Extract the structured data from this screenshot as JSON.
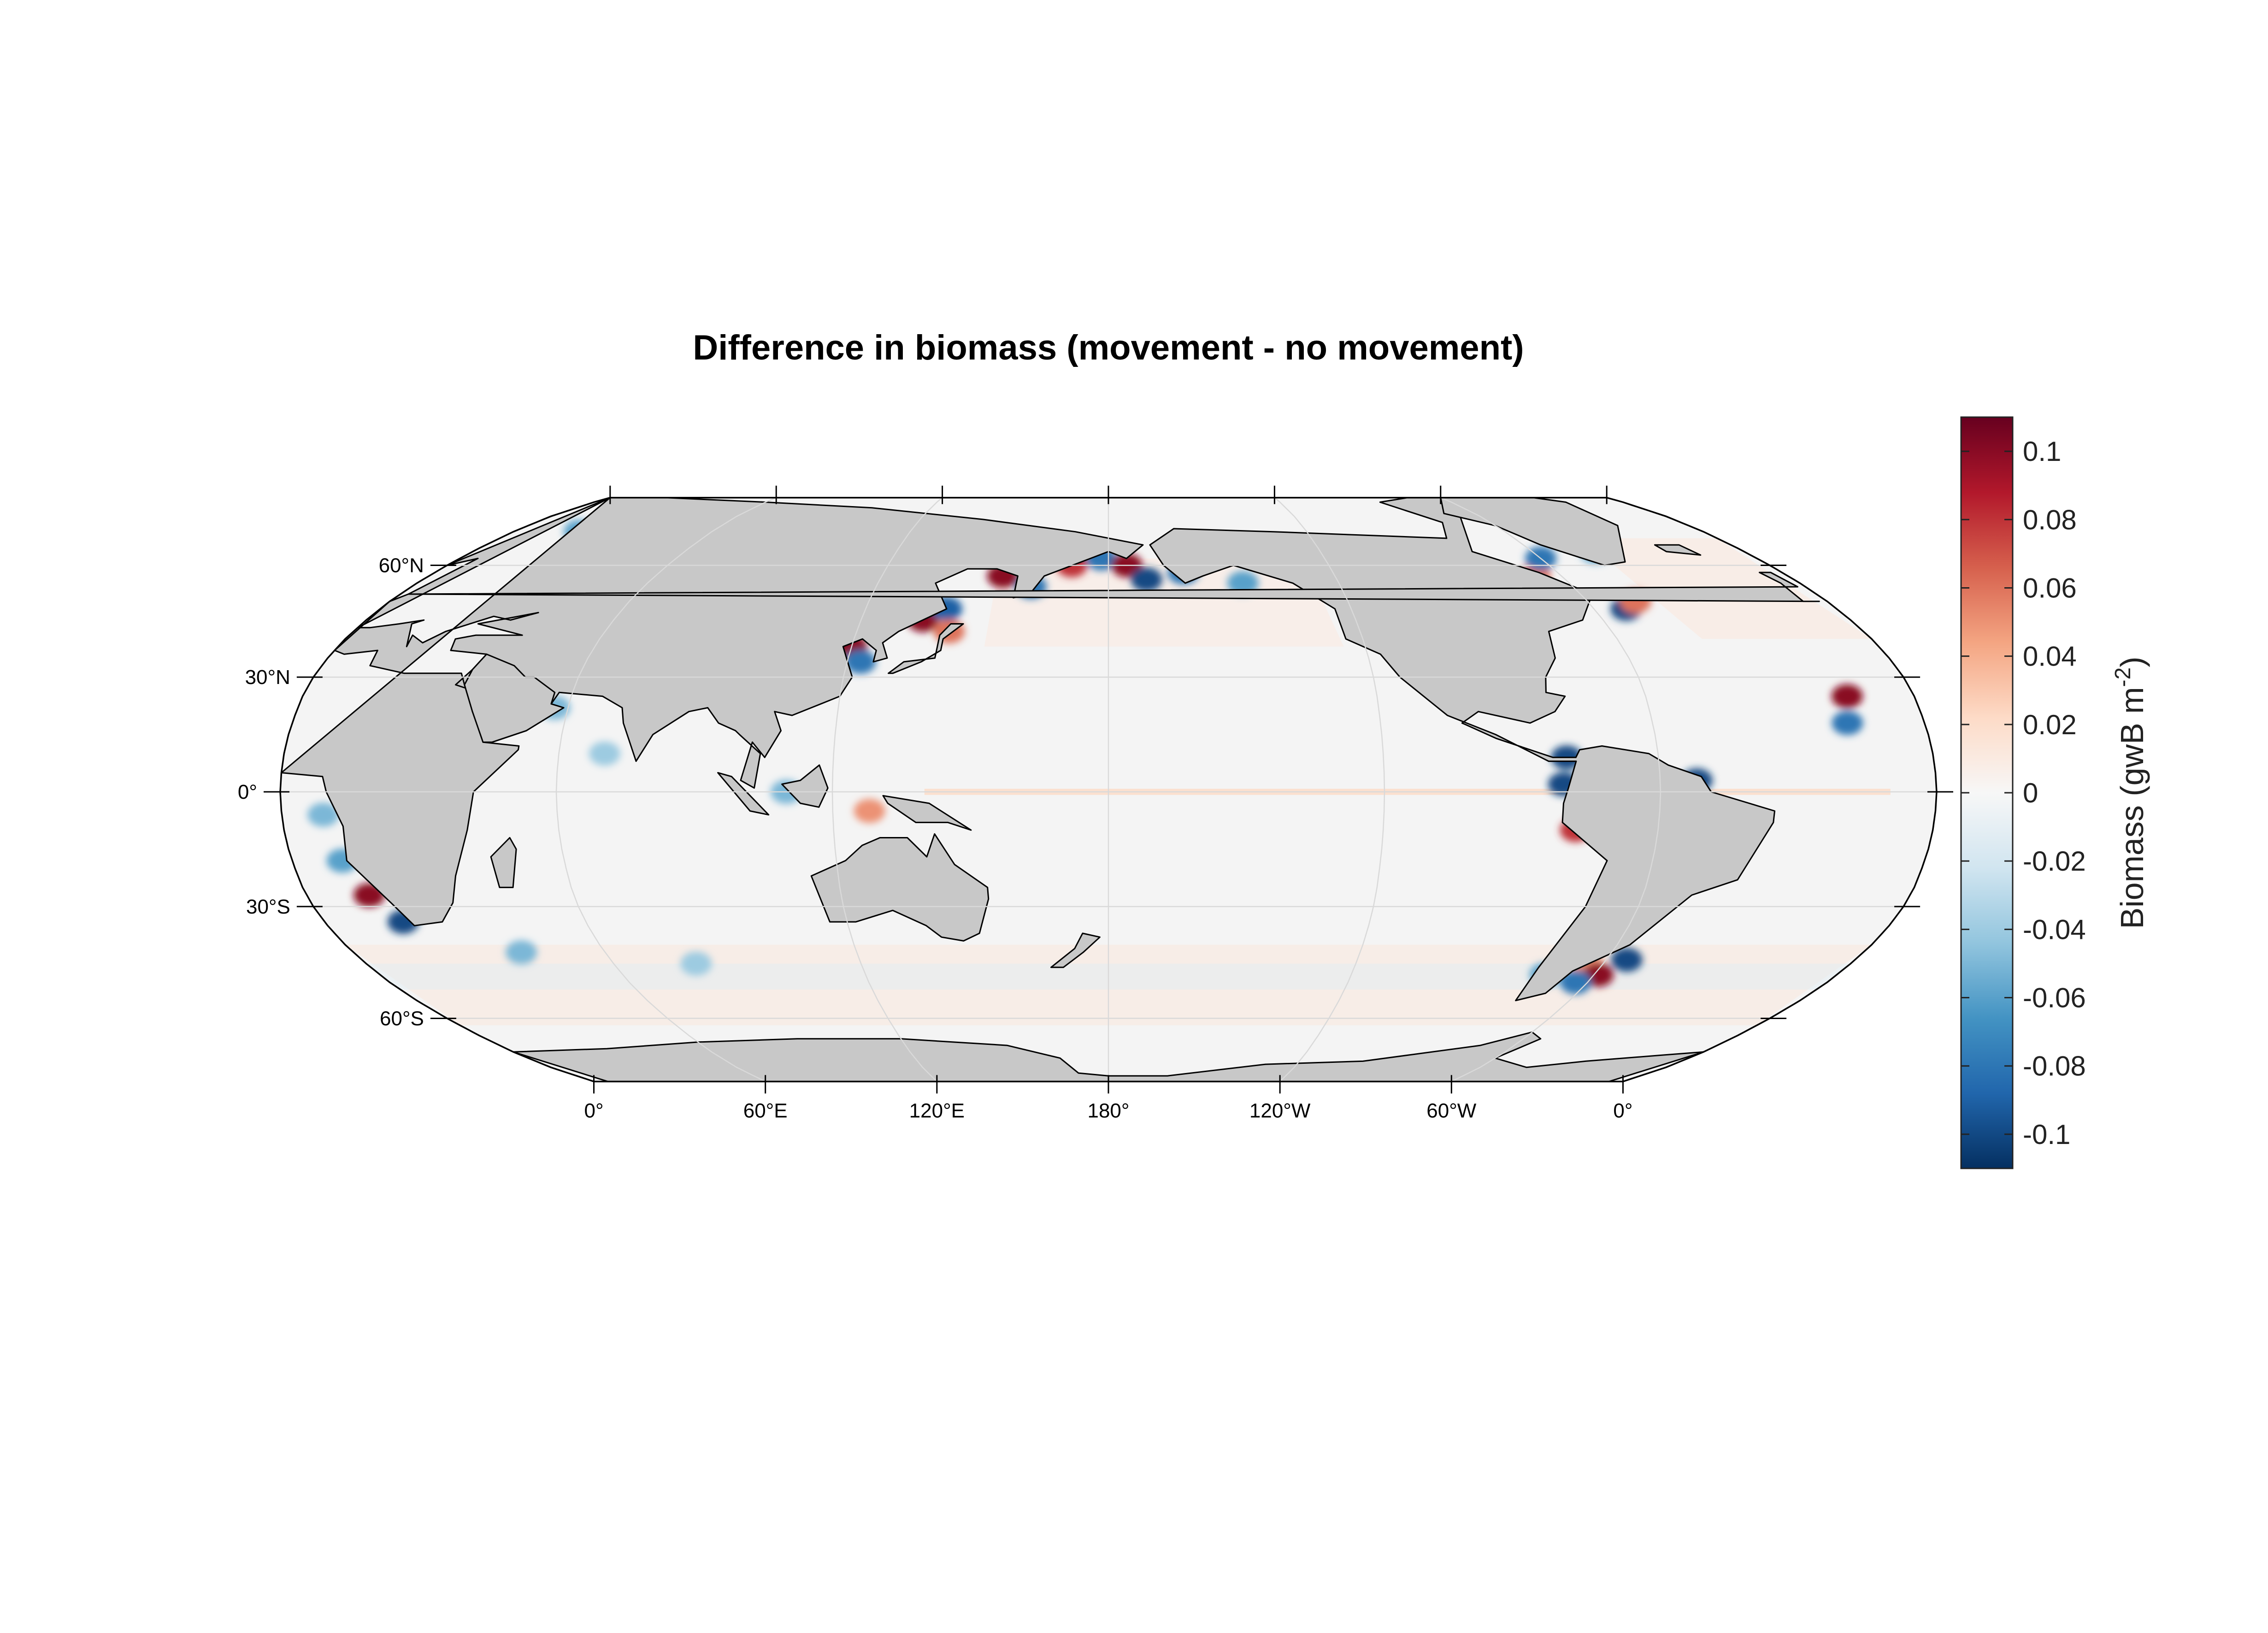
{
  "title": "Difference in biomass (movement - no movement)",
  "map": {
    "projection": "robinson",
    "central_meridian": 180,
    "land_color": "#c8c8c8",
    "ocean_color": "#f4f4f4",
    "grid_color": "#d9d9d9",
    "lat_ticks": [
      {
        "value": 60,
        "label": "60°N"
      },
      {
        "value": 30,
        "label": "30°N"
      },
      {
        "value": 0,
        "label": "0°"
      },
      {
        "value": -30,
        "label": "30°S"
      },
      {
        "value": -60,
        "label": "60°S"
      }
    ],
    "lon_ticks": [
      {
        "value": 0,
        "label": "0°"
      },
      {
        "value": 60,
        "label": "60°E"
      },
      {
        "value": 120,
        "label": "120°E"
      },
      {
        "value": 180,
        "label": "180°"
      },
      {
        "value": 240,
        "label": "120°W"
      },
      {
        "value": 300,
        "label": "60°W"
      },
      {
        "value": 360,
        "label": "0°"
      }
    ],
    "hotspots": [
      {
        "lon": 14,
        "lat": -27,
        "value": 0.1
      },
      {
        "lon": 18,
        "lat": -34,
        "value": -0.1
      },
      {
        "lon": 11,
        "lat": -18,
        "value": -0.06
      },
      {
        "lon": 9,
        "lat": -6,
        "value": -0.05
      },
      {
        "lon": 40,
        "lat": -42,
        "value": -0.05
      },
      {
        "lon": 80,
        "lat": -45,
        "value": -0.04
      },
      {
        "lon": 57,
        "lat": 22,
        "value": -0.05
      },
      {
        "lon": 70,
        "lat": 10,
        "value": -0.04
      },
      {
        "lon": 120,
        "lat": 38,
        "value": 0.1
      },
      {
        "lon": 123,
        "lat": 34,
        "value": -0.08
      },
      {
        "lon": 135,
        "lat": 45,
        "value": 0.1
      },
      {
        "lon": 140,
        "lat": 48,
        "value": -0.09
      },
      {
        "lon": 142,
        "lat": 42,
        "value": 0.06
      },
      {
        "lon": 152,
        "lat": 57,
        "value": 0.1
      },
      {
        "lon": 160,
        "lat": 54,
        "value": -0.08
      },
      {
        "lon": 170,
        "lat": 60,
        "value": 0.08
      },
      {
        "lon": 178,
        "lat": 62,
        "value": -0.08
      },
      {
        "lon": 185,
        "lat": 60,
        "value": 0.1
      },
      {
        "lon": 190,
        "lat": 56,
        "value": -0.1
      },
      {
        "lon": 200,
        "lat": 58,
        "value": -0.08
      },
      {
        "lon": 215,
        "lat": 55,
        "value": -0.06
      },
      {
        "lon": 110,
        "lat": 0,
        "value": -0.05
      },
      {
        "lon": 128,
        "lat": -5,
        "value": 0.05
      },
      {
        "lon": 280,
        "lat": 9,
        "value": -0.1
      },
      {
        "lon": 279,
        "lat": 2,
        "value": -0.1
      },
      {
        "lon": 282,
        "lat": -10,
        "value": 0.08
      },
      {
        "lon": 308,
        "lat": 3,
        "value": -0.1
      },
      {
        "lon": 296,
        "lat": -45,
        "value": 0.05
      },
      {
        "lon": 301,
        "lat": -48,
        "value": 0.1
      },
      {
        "lon": 305,
        "lat": -44,
        "value": -0.1
      },
      {
        "lon": 297,
        "lat": -50,
        "value": -0.08
      },
      {
        "lon": 288,
        "lat": -48,
        "value": -0.06
      },
      {
        "lon": 293,
        "lat": 57,
        "value": 0.06
      },
      {
        "lon": 300,
        "lat": 62,
        "value": -0.08
      },
      {
        "lon": 308,
        "lat": 48,
        "value": -0.1
      },
      {
        "lon": 312,
        "lat": 50,
        "value": 0.06
      },
      {
        "lon": 318,
        "lat": 64,
        "value": -0.06
      },
      {
        "lon": 345,
        "lat": 25,
        "value": 0.1
      },
      {
        "lon": 343,
        "lat": 18,
        "value": -0.08
      },
      {
        "lon": 20,
        "lat": 70,
        "value": -0.06
      },
      {
        "lon": 45,
        "lat": 72,
        "value": 0.05
      }
    ]
  },
  "colorbar": {
    "label": "Biomass (gwB m",
    "label_sup": "-2",
    "label_close": ")",
    "min": -0.11,
    "max": 0.11,
    "colors": [
      "#053061",
      "#2166ac",
      "#4393c3",
      "#92c5de",
      "#d1e5f0",
      "#f7f7f7",
      "#fddbc7",
      "#f4a582",
      "#d6604d",
      "#b2182b",
      "#67001f"
    ],
    "ticks": [
      {
        "value": 0.1,
        "label": "0.1"
      },
      {
        "value": 0.08,
        "label": "0.08"
      },
      {
        "value": 0.06,
        "label": "0.06"
      },
      {
        "value": 0.04,
        "label": "0.04"
      },
      {
        "value": 0.02,
        "label": "0.02"
      },
      {
        "value": 0,
        "label": "0"
      },
      {
        "value": -0.02,
        "label": "-0.02"
      },
      {
        "value": -0.04,
        "label": "-0.04"
      },
      {
        "value": -0.06,
        "label": "-0.06"
      },
      {
        "value": -0.08,
        "label": "-0.08"
      },
      {
        "value": -0.1,
        "label": "-0.1"
      }
    ]
  }
}
